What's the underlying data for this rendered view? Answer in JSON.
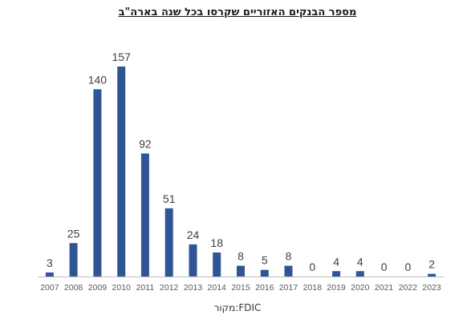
{
  "chart_data": {
    "type": "bar",
    "title": "מספר הבנקים האזוריים שקרסו בכל שנה בארה\"ב",
    "categories": [
      "2007",
      "2008",
      "2009",
      "2010",
      "2011",
      "2012",
      "2013",
      "2014",
      "2015",
      "2016",
      "2017",
      "2018",
      "2019",
      "2020",
      "2021",
      "2022",
      "2023"
    ],
    "values": [
      3,
      25,
      140,
      157,
      92,
      51,
      24,
      18,
      8,
      5,
      8,
      0,
      4,
      4,
      0,
      0,
      2
    ],
    "data_labels": true,
    "xlabel": "",
    "ylabel": "",
    "ylim": [
      0,
      160
    ],
    "grid": false,
    "legend": "none",
    "colors": {
      "bar": "#2F5597",
      "axis": "#BFBFBF",
      "label": "#404040",
      "tick": "#595959"
    }
  },
  "source": "מקור:FDIC"
}
